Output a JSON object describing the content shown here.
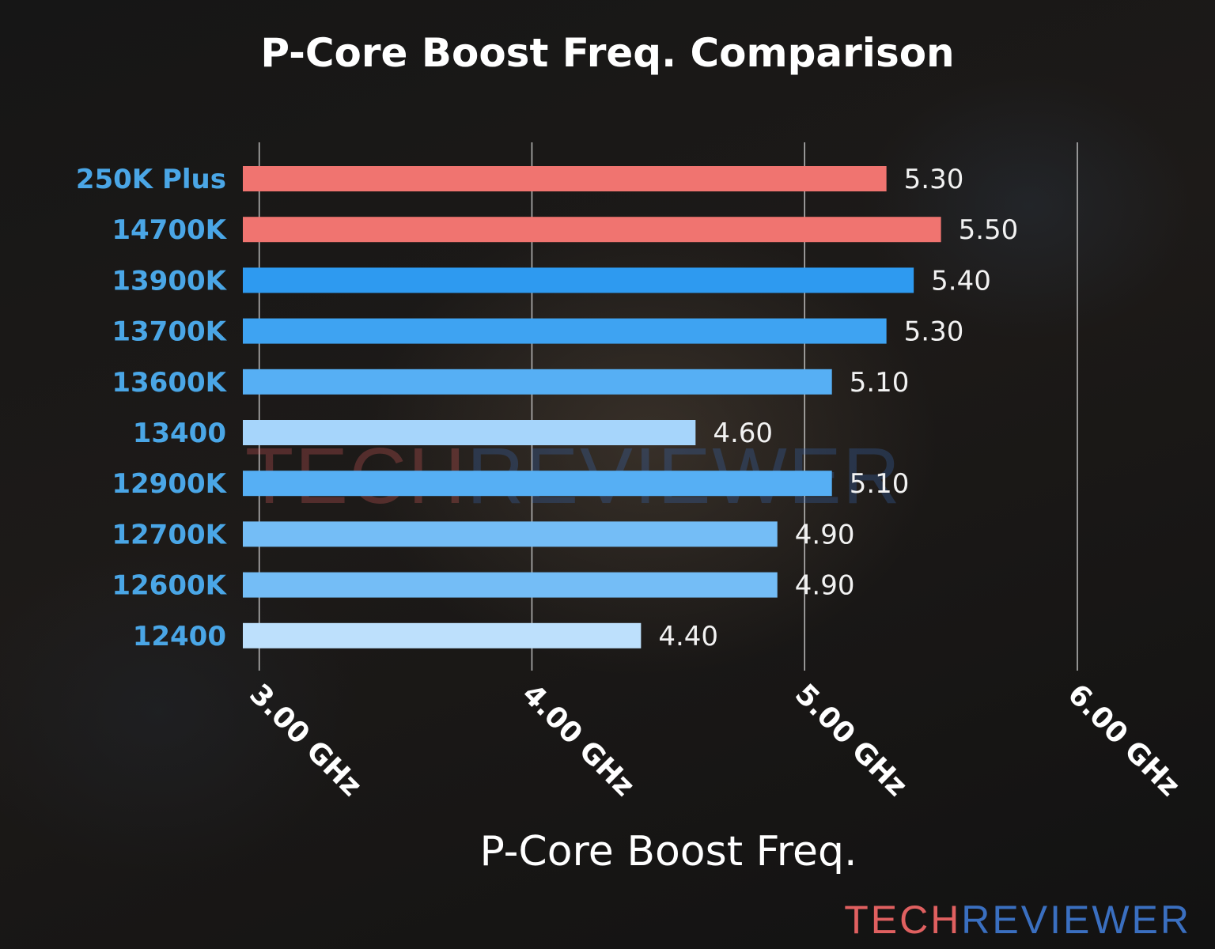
{
  "chart_data": {
    "type": "bar",
    "orientation": "horizontal",
    "title": "P-Core Boost Freq. Comparison",
    "xlabel": "P-Core Boost Freq.",
    "ylabel": "",
    "categories": [
      "250K Plus",
      "14700K",
      "13900K",
      "13700K",
      "13600K",
      "13400",
      "12900K",
      "12700K",
      "12600K",
      "12400"
    ],
    "values": [
      5.3,
      5.5,
      5.4,
      5.3,
      5.1,
      4.6,
      5.1,
      4.9,
      4.9,
      4.4
    ],
    "value_labels": [
      "5.30",
      "5.50",
      "5.40",
      "5.30",
      "5.10",
      "4.60",
      "5.10",
      "4.90",
      "4.90",
      "4.40"
    ],
    "bar_colors": [
      "#f07470",
      "#f07470",
      "#2e9af0",
      "#3ea3f2",
      "#56aff4",
      "#a6d5fb",
      "#56aff4",
      "#74bdf6",
      "#74bdf6",
      "#bde0fc"
    ],
    "xlim": [
      2.94,
      6.0
    ],
    "xticks": [
      3.0,
      4.0,
      5.0,
      6.0
    ],
    "xtick_labels": [
      "3.00 GHz",
      "4.00 GHz",
      "5.00 GHz",
      "6.00 GHz"
    ],
    "grid": "vertical",
    "legend": "none"
  },
  "watermark": {
    "part1": "TECH",
    "part2": "REVIEWER",
    "color1": "#e06060",
    "color2": "#3a6fc0"
  }
}
